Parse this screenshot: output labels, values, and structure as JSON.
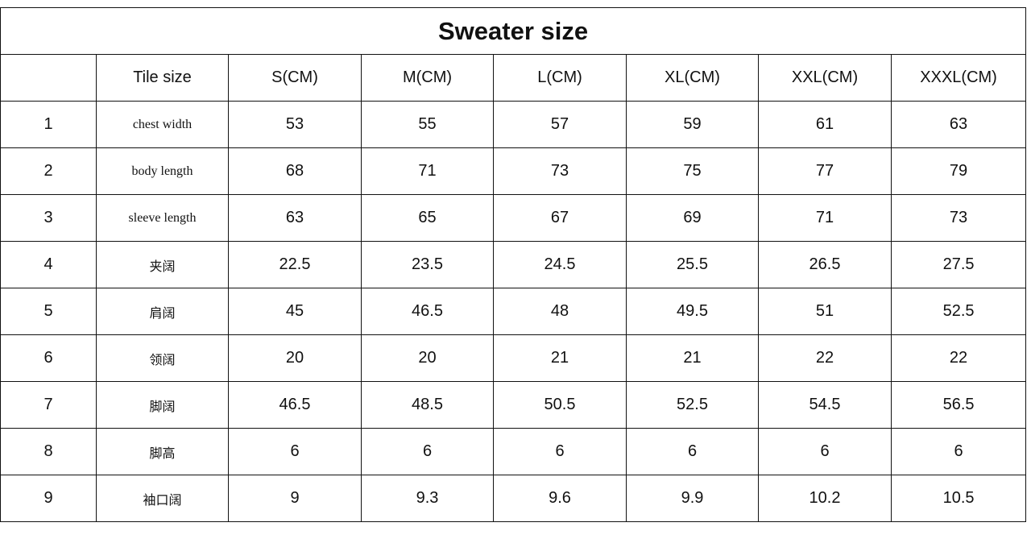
{
  "table": {
    "title": "Sweater size",
    "header": [
      "Tile size",
      "S(CM)",
      "M(CM)",
      "L(CM)",
      "XL(CM)",
      "XXL(CM)",
      "XXXL(CM)"
    ],
    "rows": [
      [
        "1",
        "chest width",
        "53",
        "55",
        "57",
        "59",
        "61",
        "63"
      ],
      [
        "2",
        "body length",
        "68",
        "71",
        "73",
        "75",
        "77",
        "79"
      ],
      [
        "3",
        "sleeve length",
        "63",
        "65",
        "67",
        "69",
        "71",
        "73"
      ],
      [
        "4",
        "夹阔",
        "22.5",
        "23.5",
        "24.5",
        "25.5",
        "26.5",
        "27.5"
      ],
      [
        "5",
        "肩阔",
        "45",
        "46.5",
        "48",
        "49.5",
        "51",
        "52.5"
      ],
      [
        "6",
        "领阔",
        "20",
        "20",
        "21",
        "21",
        "22",
        "22"
      ],
      [
        "7",
        "脚阔",
        "46.5",
        "48.5",
        "50.5",
        "52.5",
        "54.5",
        "56.5"
      ],
      [
        "8",
        "脚高",
        "6",
        "6",
        "6",
        "6",
        "6",
        "6"
      ],
      [
        "9",
        "袖口阔",
        "9",
        "9.3",
        "9.6",
        "9.9",
        "10.2",
        "10.5"
      ]
    ]
  }
}
